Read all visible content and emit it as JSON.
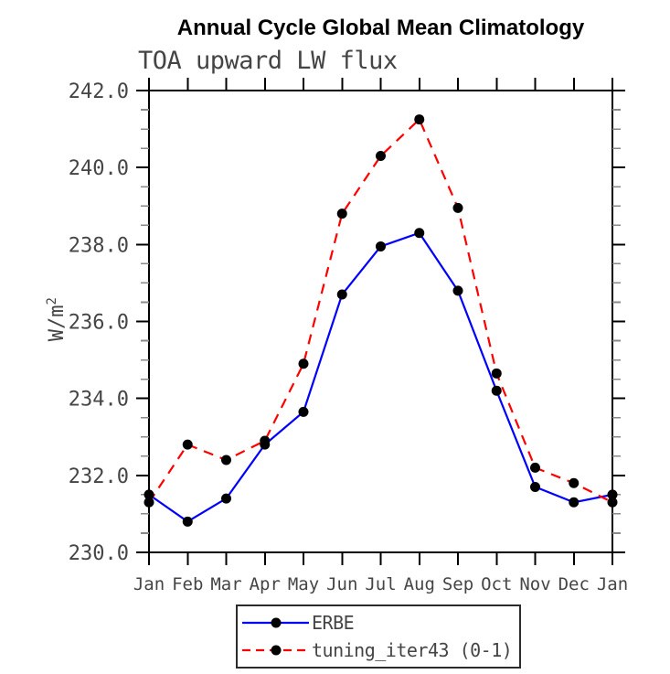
{
  "page": {
    "background": "#ffffff"
  },
  "chart_data": {
    "type": "line",
    "title": "Annual Cycle Global Mean Climatology",
    "subtitle": "TOA upward LW flux",
    "xlabel": "",
    "ylabel": "W/m^2",
    "ylabel_base": "W/m",
    "ylabel_exp": "2",
    "ylim": [
      230.0,
      242.0
    ],
    "ytick_major": 2.0,
    "ytick_minor": 0.5,
    "grid": false,
    "legend_position": "bottom-center",
    "categories": [
      "Jan",
      "Feb",
      "Mar",
      "Apr",
      "May",
      "Jun",
      "Jul",
      "Aug",
      "Sep",
      "Oct",
      "Nov",
      "Dec",
      "Jan"
    ],
    "series": [
      {
        "name": "ERBE",
        "color": "#0000ff",
        "line_style": "solid",
        "marker": "filled-circle",
        "marker_color": "#000000",
        "values": [
          231.5,
          230.8,
          231.4,
          232.8,
          233.65,
          236.7,
          237.95,
          238.3,
          236.8,
          234.2,
          231.7,
          231.3,
          231.5
        ]
      },
      {
        "name": "tuning_iter43 (0-1)",
        "color": "#ff0000",
        "line_style": "dashed",
        "marker": "filled-circle",
        "marker_color": "#000000",
        "values": [
          231.3,
          232.8,
          232.4,
          232.9,
          234.9,
          238.8,
          240.3,
          241.25,
          238.95,
          234.65,
          232.2,
          231.8,
          231.3
        ]
      }
    ],
    "colors": {
      "axis": "#000000",
      "major_tick": "#000000",
      "minor_tick": "#8a8a8a",
      "tick_label": "#454545",
      "title": "#000000",
      "subtitle": "#454545"
    },
    "ytick_labels": [
      "230.0",
      "232.0",
      "234.0",
      "236.0",
      "238.0",
      "240.0",
      "242.0"
    ]
  }
}
